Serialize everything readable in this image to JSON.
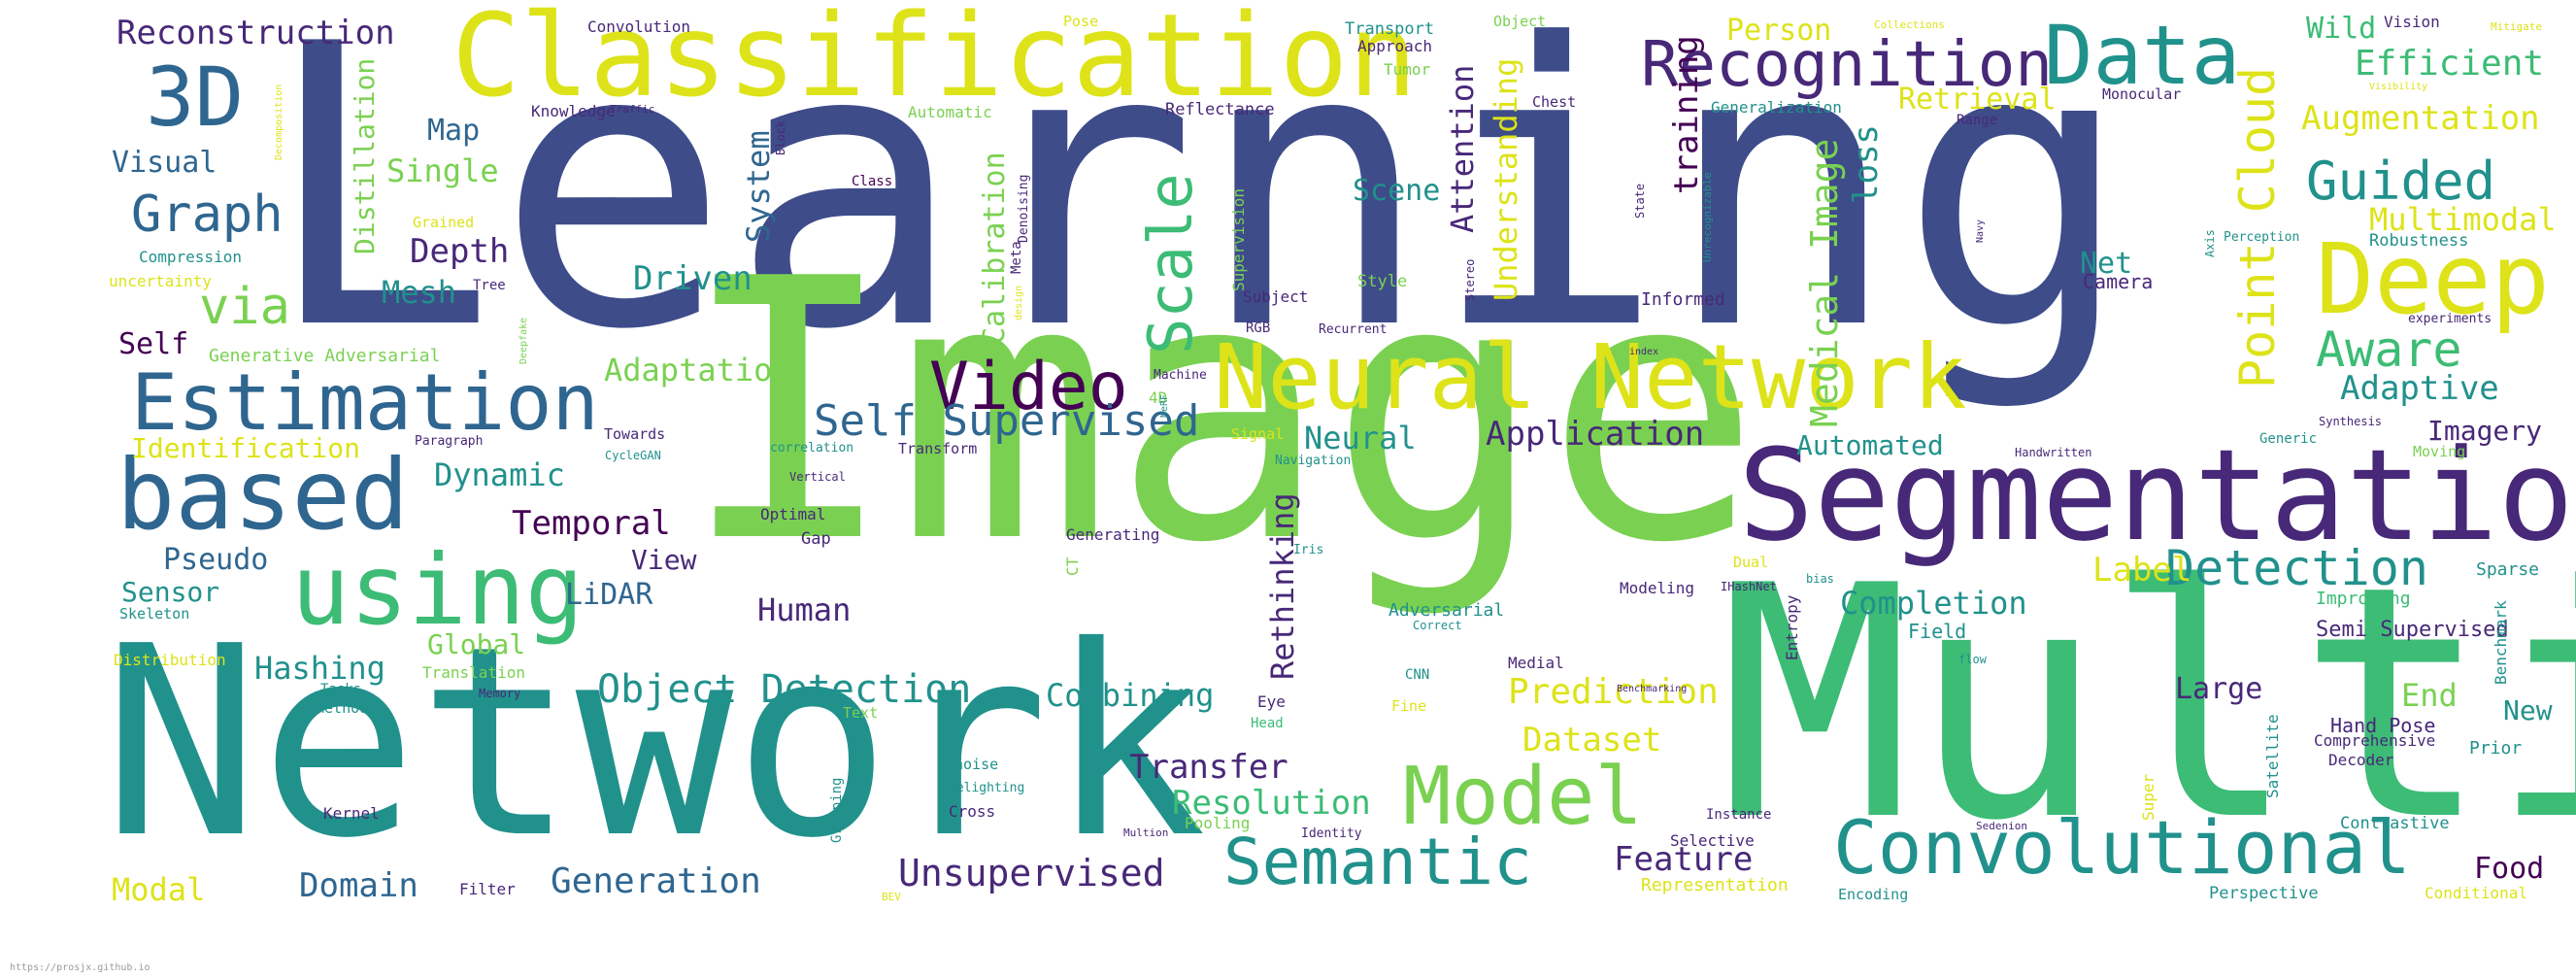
{
  "credit": "https://prosjx.github.io",
  "palette": {
    "navy": "#3e4c8a",
    "blue": "#2f6690",
    "teal": "#21918c",
    "green": "#3cbc75",
    "lime": "#7ad151",
    "yellow": "#dde318",
    "purple": "#482878",
    "dark": "#440154"
  },
  "words": [
    {
      "text": "Learning",
      "c": "navy"
    },
    {
      "text": "Image",
      "c": "lime"
    },
    {
      "text": "Network",
      "c": "teal"
    },
    {
      "text": "Multi",
      "c": "green"
    },
    {
      "text": "Classification",
      "c": "yellow"
    },
    {
      "text": "Segmentation",
      "c": "purple"
    },
    {
      "text": "Neural Network",
      "c": "yellow"
    },
    {
      "text": "Recognition",
      "c": "purple"
    },
    {
      "text": "Data",
      "c": "teal"
    },
    {
      "text": "Deep",
      "c": "yellow"
    },
    {
      "text": "Estimation",
      "c": "blue"
    },
    {
      "text": "based",
      "c": "blue"
    },
    {
      "text": "using",
      "c": "green"
    },
    {
      "text": "Convolutional",
      "c": "teal"
    },
    {
      "text": "Video",
      "c": "dark"
    },
    {
      "text": "Model",
      "c": "lime"
    },
    {
      "text": "Semantic",
      "c": "teal"
    },
    {
      "text": "3D",
      "c": "blue"
    },
    {
      "text": "Scale",
      "c": "green"
    },
    {
      "text": "Point Cloud",
      "c": "yellow"
    },
    {
      "text": "Self Supervised",
      "c": "blue"
    },
    {
      "text": "Detection",
      "c": "teal"
    },
    {
      "text": "Object Detection",
      "c": "teal"
    },
    {
      "text": "Graph",
      "c": "blue"
    },
    {
      "text": "Medical Image",
      "c": "lime"
    },
    {
      "text": "Guided",
      "c": "teal"
    },
    {
      "text": "Aware",
      "c": "green"
    },
    {
      "text": "via",
      "c": "lime"
    },
    {
      "text": "Understanding",
      "c": "yellow"
    },
    {
      "text": "Calibration",
      "c": "lime"
    },
    {
      "text": "Attention",
      "c": "purple"
    },
    {
      "text": "Efficient",
      "c": "green"
    },
    {
      "text": "Augmentation",
      "c": "yellow"
    },
    {
      "text": "Multimodal",
      "c": "yellow"
    },
    {
      "text": "Adaptive",
      "c": "teal"
    },
    {
      "text": "Application",
      "c": "purple"
    },
    {
      "text": "Dataset",
      "c": "yellow"
    },
    {
      "text": "Resolution",
      "c": "green"
    },
    {
      "text": "Unsupervised",
      "c": "purple"
    },
    {
      "text": "Generation",
      "c": "blue"
    },
    {
      "text": "Feature",
      "c": "purple"
    },
    {
      "text": "Domain",
      "c": "blue"
    },
    {
      "text": "Prediction",
      "c": "yellow"
    },
    {
      "text": "Completion",
      "c": "teal"
    },
    {
      "text": "Label",
      "c": "yellow"
    },
    {
      "text": "Transfer",
      "c": "purple"
    },
    {
      "text": "Combining",
      "c": "teal"
    },
    {
      "text": "Rethinking",
      "c": "purple"
    },
    {
      "text": "Temporal",
      "c": "dark"
    },
    {
      "text": "Dynamic",
      "c": "teal"
    },
    {
      "text": "Adaptation",
      "c": "lime"
    },
    {
      "text": "Driven",
      "c": "teal"
    },
    {
      "text": "Depth",
      "c": "purple"
    },
    {
      "text": "Distillation",
      "c": "lime"
    },
    {
      "text": "Mesh",
      "c": "teal"
    },
    {
      "text": "System",
      "c": "blue"
    },
    {
      "text": "Scene",
      "c": "teal"
    },
    {
      "text": "training",
      "c": "dark"
    },
    {
      "text": "loss",
      "c": "teal"
    },
    {
      "text": "Retrieval",
      "c": "yellow"
    },
    {
      "text": "Person",
      "c": "yellow"
    },
    {
      "text": "Wild",
      "c": "green"
    },
    {
      "text": "Reconstruction",
      "c": "purple"
    },
    {
      "text": "Visual",
      "c": "blue"
    },
    {
      "text": "Single",
      "c": "lime"
    },
    {
      "text": "Map",
      "c": "blue"
    },
    {
      "text": "Self",
      "c": "dark"
    },
    {
      "text": "Identification",
      "c": "yellow"
    },
    {
      "text": "Pseudo",
      "c": "blue"
    },
    {
      "text": "Sensor",
      "c": "teal"
    },
    {
      "text": "Hashing",
      "c": "teal"
    },
    {
      "text": "Global",
      "c": "lime"
    },
    {
      "text": "View",
      "c": "purple"
    },
    {
      "text": "LiDAR",
      "c": "blue"
    },
    {
      "text": "Human",
      "c": "purple"
    },
    {
      "text": "Neural",
      "c": "teal"
    },
    {
      "text": "Automated",
      "c": "teal"
    },
    {
      "text": "Imagery",
      "c": "purple"
    },
    {
      "text": "Large",
      "c": "purple"
    },
    {
      "text": "End",
      "c": "lime"
    },
    {
      "text": "New",
      "c": "teal"
    },
    {
      "text": "Food",
      "c": "dark"
    },
    {
      "text": "Modal",
      "c": "yellow"
    },
    {
      "text": "Net",
      "c": "teal"
    },
    {
      "text": "Camera",
      "c": "purple"
    },
    {
      "text": "Hand Pose",
      "c": "purple"
    },
    {
      "text": "Convolution",
      "c": "purple"
    },
    {
      "text": "Pose",
      "c": "yellow"
    },
    {
      "text": "Transport",
      "c": "teal"
    },
    {
      "text": "Approach",
      "c": "purple"
    },
    {
      "text": "Tumor",
      "c": "lime"
    },
    {
      "text": "Object",
      "c": "lime"
    },
    {
      "text": "Vision",
      "c": "purple"
    },
    {
      "text": "Collections",
      "c": "yellow"
    },
    {
      "text": "Knowledge",
      "c": "purple"
    },
    {
      "text": "Traffic",
      "c": "purple"
    },
    {
      "text": "Automatic",
      "c": "lime"
    },
    {
      "text": "Reflectance",
      "c": "purple"
    },
    {
      "text": "Chest",
      "c": "purple"
    },
    {
      "text": "Generalization",
      "c": "teal"
    },
    {
      "text": "Monocular",
      "c": "purple"
    },
    {
      "text": "Range",
      "c": "purple"
    },
    {
      "text": "Compression",
      "c": "teal"
    },
    {
      "text": "uncertainty",
      "c": "yellow"
    },
    {
      "text": "Grained",
      "c": "yellow"
    },
    {
      "text": "Tree",
      "c": "purple"
    },
    {
      "text": "Generative Adversarial",
      "c": "lime"
    },
    {
      "text": "Class",
      "c": "dark"
    },
    {
      "text": "Denoising",
      "c": "purple"
    },
    {
      "text": "Meta",
      "c": "purple"
    },
    {
      "text": "Subject",
      "c": "purple"
    },
    {
      "text": "RGB",
      "c": "purple"
    },
    {
      "text": "Recurrent",
      "c": "purple"
    },
    {
      "text": "Supervision",
      "c": "lime"
    },
    {
      "text": "Style",
      "c": "lime"
    },
    {
      "text": "Informed",
      "c": "purple"
    },
    {
      "text": "Perception",
      "c": "teal"
    },
    {
      "text": "Robustness",
      "c": "teal"
    },
    {
      "text": "experiments",
      "c": "purple"
    },
    {
      "text": "Machine",
      "c": "purple"
    },
    {
      "text": "4D",
      "c": "lime"
    },
    {
      "text": "Towards",
      "c": "purple"
    },
    {
      "text": "Paragraph",
      "c": "purple"
    },
    {
      "text": "CycleGAN",
      "c": "teal"
    },
    {
      "text": "Transform",
      "c": "purple"
    },
    {
      "text": "correlation",
      "c": "teal"
    },
    {
      "text": "Signal",
      "c": "yellow"
    },
    {
      "text": "Navigation",
      "c": "teal"
    },
    {
      "text": "Handwritten",
      "c": "purple"
    },
    {
      "text": "Synthesis",
      "c": "purple"
    },
    {
      "text": "Generic",
      "c": "teal"
    },
    {
      "text": "Moving",
      "c": "lime"
    },
    {
      "text": "Vertical",
      "c": "purple"
    },
    {
      "text": "Optimal",
      "c": "purple"
    },
    {
      "text": "Gap",
      "c": "purple"
    },
    {
      "text": "Generating",
      "c": "purple"
    },
    {
      "text": "Skeleton",
      "c": "teal"
    },
    {
      "text": "Distribution",
      "c": "yellow"
    },
    {
      "text": "Translation",
      "c": "lime"
    },
    {
      "text": "Tasks",
      "c": "teal"
    },
    {
      "text": "method",
      "c": "teal"
    },
    {
      "text": "Memory",
      "c": "purple"
    },
    {
      "text": "Text",
      "c": "lime"
    },
    {
      "text": "Eye",
      "c": "purple"
    },
    {
      "text": "Head",
      "c": "green"
    },
    {
      "text": "Fine",
      "c": "yellow"
    },
    {
      "text": "CNN",
      "c": "teal"
    },
    {
      "text": "Medial",
      "c": "purple"
    },
    {
      "text": "Adversarial",
      "c": "teal"
    },
    {
      "text": "Correct",
      "c": "teal"
    },
    {
      "text": "Modeling",
      "c": "purple"
    },
    {
      "text": "Dual",
      "c": "yellow"
    },
    {
      "text": "IHashNet",
      "c": "purple"
    },
    {
      "text": "bias",
      "c": "teal"
    },
    {
      "text": "Field",
      "c": "teal"
    },
    {
      "text": "Improving",
      "c": "green"
    },
    {
      "text": "Sparse",
      "c": "teal"
    },
    {
      "text": "Semi Supervised",
      "c": "purple"
    },
    {
      "text": "Benchmarking",
      "c": "purple"
    },
    {
      "text": "flow",
      "c": "teal"
    },
    {
      "text": "Comprehensive",
      "c": "purple"
    },
    {
      "text": "Decoder",
      "c": "purple"
    },
    {
      "text": "Prior",
      "c": "teal"
    },
    {
      "text": "Kernel",
      "c": "purple"
    },
    {
      "text": "noise",
      "c": "teal"
    },
    {
      "text": "Relighting",
      "c": "teal"
    },
    {
      "text": "Cross",
      "c": "purple"
    },
    {
      "text": "Multion",
      "c": "purple"
    },
    {
      "text": "Pooling",
      "c": "lime"
    },
    {
      "text": "Identity",
      "c": "purple"
    },
    {
      "text": "Instance",
      "c": "purple"
    },
    {
      "text": "Selective",
      "c": "purple"
    },
    {
      "text": "Sedenion",
      "c": "purple"
    },
    {
      "text": "Contrastive",
      "c": "teal"
    },
    {
      "text": "Representation",
      "c": "yellow"
    },
    {
      "text": "Encoding",
      "c": "teal"
    },
    {
      "text": "Perspective",
      "c": "teal"
    },
    {
      "text": "Conditional",
      "c": "yellow"
    },
    {
      "text": "Filter",
      "c": "purple"
    },
    {
      "text": "Grouping",
      "c": "teal"
    },
    {
      "text": "Super",
      "c": "yellow"
    },
    {
      "text": "Satellite",
      "c": "teal"
    },
    {
      "text": "Benchmark",
      "c": "teal"
    },
    {
      "text": "Entropy",
      "c": "purple"
    },
    {
      "text": "CT",
      "c": "lime"
    },
    {
      "text": "Iris",
      "c": "teal"
    },
    {
      "text": "Block",
      "c": "purple"
    },
    {
      "text": "Decomposition",
      "c": "yellow"
    },
    {
      "text": "Visibility",
      "c": "yellow"
    },
    {
      "text": "Mitigate",
      "c": "yellow"
    },
    {
      "text": "Unrecognizable",
      "c": "teal"
    },
    {
      "text": "Stereo",
      "c": "purple"
    },
    {
      "text": "State",
      "c": "purple"
    },
    {
      "text": "Axis",
      "c": "teal"
    },
    {
      "text": "Deepfake",
      "c": "lime"
    },
    {
      "text": "design",
      "c": "yellow"
    },
    {
      "text": "index",
      "c": "purple"
    },
    {
      "text": "NeRF",
      "c": "teal"
    },
    {
      "text": "Navy",
      "c": "purple"
    },
    {
      "text": "BEV",
      "c": "yellow"
    }
  ]
}
